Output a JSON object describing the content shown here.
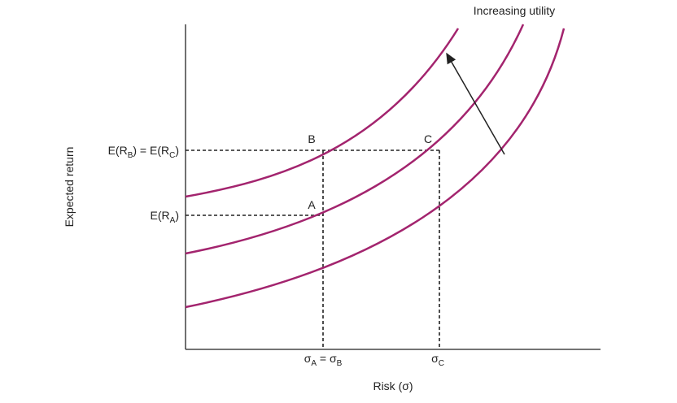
{
  "title": "Increasing utility",
  "y_axis": {
    "title": "Expected return",
    "labels": [
      {
        "parts": [
          "E(R",
          "B",
          ") = E(R",
          "C",
          ")"
        ]
      },
      {
        "parts": [
          "E(R",
          "A",
          ")"
        ]
      }
    ]
  },
  "x_axis": {
    "title": "Risk (σ)",
    "labels": [
      {
        "parts": [
          "σ",
          "A",
          " = σ",
          "B"
        ]
      },
      {
        "parts": [
          "σ",
          "C"
        ]
      }
    ]
  },
  "points": [
    "A",
    "B",
    "C"
  ]
}
